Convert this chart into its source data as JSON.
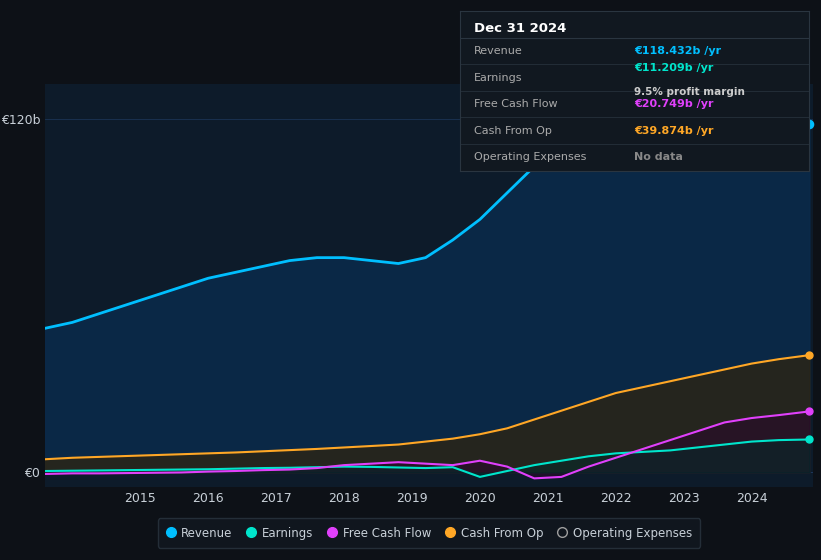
{
  "bg_color": "#0d1117",
  "plot_bg_color": "#0d1b2a",
  "grid_color": "#1e3a5f",
  "text_color": "#c8d0d8",
  "years": [
    2013.6,
    2014.0,
    2014.4,
    2014.8,
    2015.2,
    2015.6,
    2016.0,
    2016.4,
    2016.8,
    2017.2,
    2017.6,
    2018.0,
    2018.4,
    2018.8,
    2019.2,
    2019.6,
    2020.0,
    2020.4,
    2020.8,
    2021.2,
    2021.6,
    2022.0,
    2022.4,
    2022.8,
    2023.2,
    2023.6,
    2024.0,
    2024.4,
    2024.85
  ],
  "revenue": [
    49,
    51,
    54,
    57,
    60,
    63,
    66,
    68,
    70,
    72,
    73,
    73,
    72,
    71,
    73,
    79,
    86,
    95,
    104,
    110,
    116,
    118,
    117,
    118,
    119,
    118,
    116,
    117,
    118.432
  ],
  "earnings": [
    0.5,
    0.6,
    0.7,
    0.8,
    0.9,
    1.0,
    1.1,
    1.3,
    1.5,
    1.6,
    1.8,
    2.0,
    1.9,
    1.7,
    1.5,
    1.8,
    -1.5,
    0.5,
    2.5,
    4.0,
    5.5,
    6.5,
    7.0,
    7.5,
    8.5,
    9.5,
    10.5,
    11.0,
    11.209
  ],
  "free_cash_flow": [
    -0.5,
    -0.3,
    -0.3,
    -0.2,
    -0.1,
    0.0,
    0.3,
    0.5,
    0.8,
    1.0,
    1.5,
    2.5,
    3.0,
    3.5,
    3.0,
    2.5,
    4.0,
    2.0,
    -2.0,
    -1.5,
    2.0,
    5.0,
    8.0,
    11.0,
    14.0,
    17.0,
    18.5,
    19.5,
    20.749
  ],
  "cash_from_op": [
    4.5,
    5.0,
    5.3,
    5.6,
    5.9,
    6.2,
    6.5,
    6.8,
    7.2,
    7.6,
    8.0,
    8.5,
    9.0,
    9.5,
    10.5,
    11.5,
    13.0,
    15.0,
    18.0,
    21.0,
    24.0,
    27.0,
    29.0,
    31.0,
    33.0,
    35.0,
    37.0,
    38.5,
    39.874
  ],
  "revenue_color": "#00bfff",
  "earnings_color": "#00e5cc",
  "free_cash_flow_color": "#e040fb",
  "cash_from_op_color": "#ffa726",
  "op_expenses_color": "#9e9e9e",
  "revenue_fill": "#0a2a4a",
  "cash_fill": "#2a2518",
  "fcf_fill": "#2a0a2a",
  "earnings_fill": "#002a2a",
  "ylim": [
    -5,
    132
  ],
  "ytick_labels": [
    "€0",
    "€120b"
  ],
  "ytick_values": [
    0,
    120
  ],
  "xtick_positions": [
    2015,
    2016,
    2017,
    2018,
    2019,
    2020,
    2021,
    2022,
    2023,
    2024
  ],
  "info_box": {
    "title": "Dec 31 2024",
    "rows": [
      {
        "label": "Revenue",
        "value": "€118.432b /yr",
        "value_color": "#00bfff"
      },
      {
        "label": "Earnings",
        "value": "€11.209b /yr",
        "value_color": "#00e5cc",
        "sub": "9.5% profit margin"
      },
      {
        "label": "Free Cash Flow",
        "value": "€20.749b /yr",
        "value_color": "#e040fb"
      },
      {
        "label": "Cash From Op",
        "value": "€39.874b /yr",
        "value_color": "#ffa726"
      },
      {
        "label": "Operating Expenses",
        "value": "No data",
        "value_color": "#888888"
      }
    ]
  },
  "legend_items": [
    {
      "label": "Revenue",
      "color": "#00bfff"
    },
    {
      "label": "Earnings",
      "color": "#00e5cc"
    },
    {
      "label": "Free Cash Flow",
      "color": "#e040fb"
    },
    {
      "label": "Cash From Op",
      "color": "#ffa726"
    },
    {
      "label": "Operating Expenses",
      "color": "#9e9e9e",
      "empty": true
    }
  ]
}
